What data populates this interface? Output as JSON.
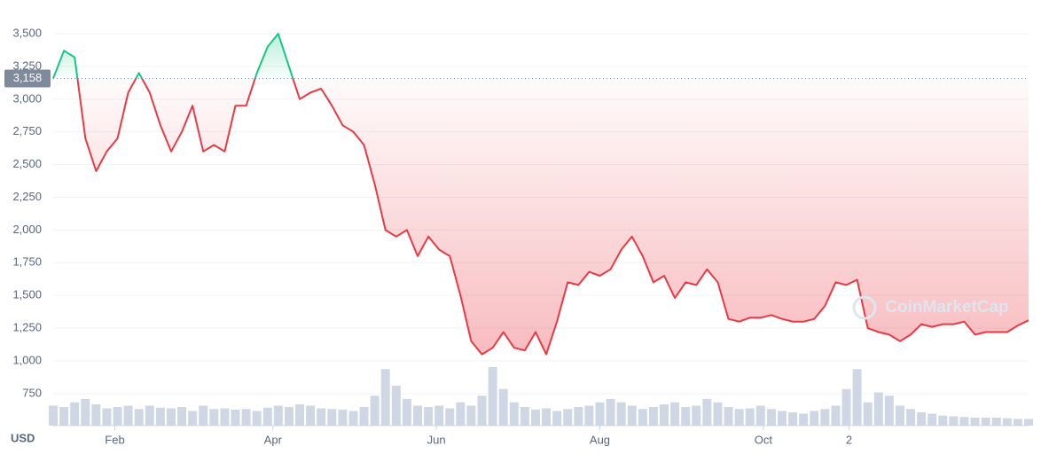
{
  "chart_data": {
    "type": "line",
    "currency_label": "USD",
    "watermark": "CoinMarketCap",
    "x": [
      0,
      4,
      8,
      12,
      16,
      20,
      24,
      28,
      32,
      36,
      40,
      44,
      48,
      52,
      56,
      60,
      64,
      68,
      72,
      76,
      80,
      84,
      88,
      92,
      96,
      100,
      104,
      108,
      112,
      116,
      120,
      124,
      128,
      132,
      136,
      140,
      144,
      148,
      152,
      156,
      160,
      164,
      168,
      172,
      176,
      180,
      184,
      188,
      192,
      196,
      200,
      204,
      208,
      212,
      216,
      220,
      224,
      228,
      232,
      236,
      240,
      244,
      248,
      252,
      256,
      260,
      264,
      268,
      272,
      276,
      280,
      284,
      288,
      292,
      296,
      300,
      304,
      308,
      312,
      316,
      320,
      324,
      328,
      332,
      336,
      340,
      344,
      348,
      352,
      356,
      360,
      364
    ],
    "values": [
      3158,
      3370,
      3320,
      2700,
      2450,
      2600,
      2700,
      3050,
      3200,
      3050,
      2800,
      2600,
      2750,
      2950,
      2600,
      2650,
      2600,
      2950,
      2950,
      3200,
      3400,
      3500,
      3250,
      3000,
      3050,
      3080,
      2950,
      2800,
      2750,
      2650,
      2350,
      2000,
      1950,
      2000,
      1800,
      1950,
      1850,
      1800,
      1500,
      1150,
      1050,
      1100,
      1220,
      1100,
      1080,
      1220,
      1050,
      1300,
      1600,
      1580,
      1680,
      1650,
      1700,
      1850,
      1950,
      1800,
      1600,
      1650,
      1480,
      1600,
      1580,
      1700,
      1600,
      1320,
      1300,
      1330,
      1330,
      1350,
      1320,
      1300,
      1300,
      1320,
      1420,
      1600,
      1580,
      1620,
      1250,
      1220,
      1200,
      1150,
      1200,
      1280,
      1260,
      1280,
      1280,
      1300,
      1200,
      1220,
      1220,
      1220,
      1270,
      1310
    ],
    "volume": {
      "color": "#cfd6e4",
      "ylim": [
        0,
        100
      ],
      "values": [
        30,
        28,
        35,
        40,
        32,
        26,
        28,
        30,
        25,
        30,
        27,
        26,
        28,
        22,
        30,
        25,
        26,
        24,
        25,
        22,
        27,
        30,
        28,
        32,
        30,
        26,
        25,
        24,
        22,
        28,
        45,
        85,
        60,
        40,
        30,
        28,
        30,
        26,
        35,
        30,
        45,
        88,
        55,
        35,
        28,
        24,
        26,
        22,
        25,
        28,
        30,
        35,
        40,
        35,
        30,
        25,
        28,
        32,
        35,
        28,
        30,
        40,
        35,
        28,
        25,
        26,
        30,
        25,
        22,
        20,
        18,
        22,
        25,
        30,
        55,
        85,
        35,
        50,
        45,
        30,
        25,
        20,
        18,
        15,
        14,
        13,
        12,
        12,
        12,
        11,
        10,
        10
      ]
    },
    "reference": {
      "value": 3158,
      "label": "3,158"
    },
    "up_color": "#16c784",
    "down_color": "#ea3943",
    "xlim": [
      0,
      364
    ],
    "xticks": [
      {
        "value": 23,
        "label": "Feb"
      },
      {
        "value": 82,
        "label": "Apr"
      },
      {
        "value": 143,
        "label": "Jun"
      },
      {
        "value": 204,
        "label": "Aug"
      },
      {
        "value": 265,
        "label": "Oct"
      },
      {
        "value": 297,
        "label": "2"
      }
    ],
    "ylim": [
      505,
      3690
    ],
    "yticks": [
      {
        "value": 750,
        "label": "750"
      },
      {
        "value": 1000,
        "label": "1,000"
      },
      {
        "value": 1250,
        "label": "1,250"
      },
      {
        "value": 1500,
        "label": "1,500"
      },
      {
        "value": 1750,
        "label": "1,750"
      },
      {
        "value": 2000,
        "label": "2,000"
      },
      {
        "value": 2250,
        "label": "2,250"
      },
      {
        "value": 2500,
        "label": "2,500"
      },
      {
        "value": 2750,
        "label": "2,750"
      },
      {
        "value": 3000,
        "label": "3,000"
      },
      {
        "value": 3250,
        "label": "3,250"
      },
      {
        "value": 3500,
        "label": "3,500"
      }
    ],
    "grid": true
  }
}
